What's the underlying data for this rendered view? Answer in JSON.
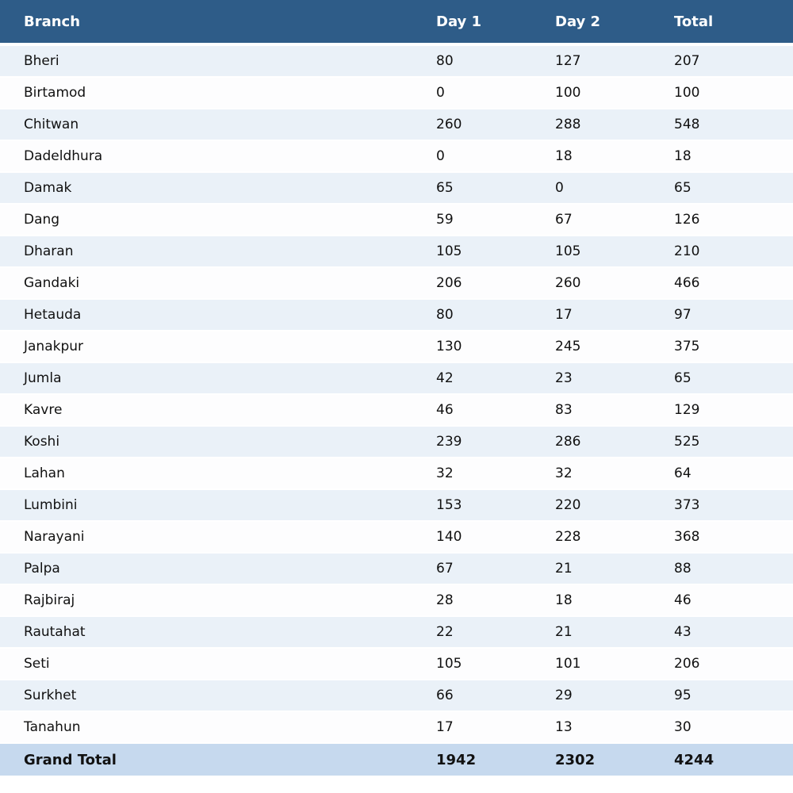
{
  "colors": {
    "header_bg": "#2e5c88",
    "stripe_bg": "#eaf1f8",
    "white_row_bg": "#fdfdfe",
    "grand_total_bg": "#c6d9ee",
    "header_text": "#ffffff",
    "body_text": "#111111"
  },
  "table": {
    "columns": [
      {
        "key": "branch",
        "label": "Branch"
      },
      {
        "key": "day1",
        "label": "Day 1"
      },
      {
        "key": "day2",
        "label": "Day 2"
      },
      {
        "key": "total",
        "label": "Total"
      }
    ],
    "rows": [
      {
        "branch": "Bheri",
        "day1": "80",
        "day2": "127",
        "total": "207"
      },
      {
        "branch": "Birtamod",
        "day1": "0",
        "day2": "100",
        "total": "100"
      },
      {
        "branch": "Chitwan",
        "day1": "260",
        "day2": "288",
        "total": "548"
      },
      {
        "branch": "Dadeldhura",
        "day1": "0",
        "day2": "18",
        "total": "18"
      },
      {
        "branch": "Damak",
        "day1": "65",
        "day2": "0",
        "total": "65"
      },
      {
        "branch": "Dang",
        "day1": "59",
        "day2": "67",
        "total": "126"
      },
      {
        "branch": "Dharan",
        "day1": "105",
        "day2": "105",
        "total": "210"
      },
      {
        "branch": "Gandaki",
        "day1": "206",
        "day2": "260",
        "total": "466"
      },
      {
        "branch": "Hetauda",
        "day1": "80",
        "day2": "17",
        "total": "97"
      },
      {
        "branch": "Janakpur",
        "day1": "130",
        "day2": "245",
        "total": "375"
      },
      {
        "branch": "Jumla",
        "day1": "42",
        "day2": "23",
        "total": "65"
      },
      {
        "branch": "Kavre",
        "day1": "46",
        "day2": "83",
        "total": "129"
      },
      {
        "branch": "Koshi",
        "day1": "239",
        "day2": "286",
        "total": "525"
      },
      {
        "branch": "Lahan",
        "day1": "32",
        "day2": "32",
        "total": "64"
      },
      {
        "branch": "Lumbini",
        "day1": "153",
        "day2": "220",
        "total": "373"
      },
      {
        "branch": "Narayani",
        "day1": "140",
        "day2": "228",
        "total": "368"
      },
      {
        "branch": "Palpa",
        "day1": "67",
        "day2": "21",
        "total": "88"
      },
      {
        "branch": "Rajbiraj",
        "day1": "28",
        "day2": "18",
        "total": "46"
      },
      {
        "branch": "Rautahat",
        "day1": "22",
        "day2": "21",
        "total": "43"
      },
      {
        "branch": "Seti",
        "day1": "105",
        "day2": "101",
        "total": "206"
      },
      {
        "branch": "Surkhet",
        "day1": "66",
        "day2": "29",
        "total": "95"
      },
      {
        "branch": "Tanahun",
        "day1": "17",
        "day2": "13",
        "total": "30"
      }
    ],
    "grand_total": {
      "label": "Grand Total",
      "day1": "1942",
      "day2": "2302",
      "total": "4244"
    }
  }
}
